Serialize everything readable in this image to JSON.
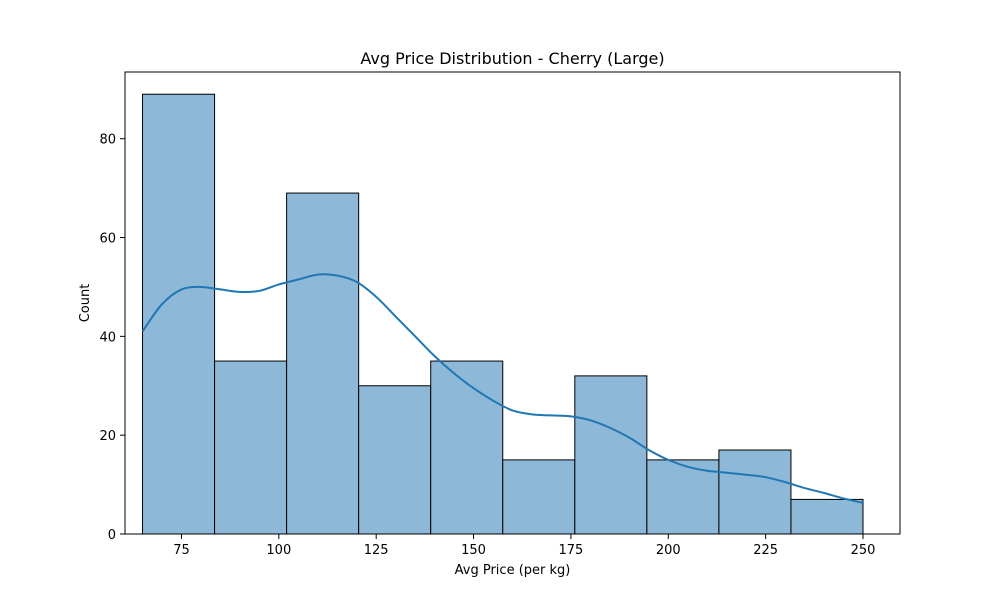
{
  "chart_data": {
    "type": "bar",
    "title": "Avg Price Distribution - Cherry (Large)",
    "xlabel": "Avg Price (per kg)",
    "ylabel": "Count",
    "xlim": [
      60.5,
      259.5
    ],
    "ylim": [
      0,
      93.5
    ],
    "xticks": [
      "75",
      "100",
      "125",
      "150",
      "175",
      "200",
      "225",
      "250"
    ],
    "yticks": [
      "0",
      "20",
      "40",
      "60",
      "80"
    ],
    "bins": [
      {
        "x0": 65.0,
        "x1": 83.5,
        "count": 89
      },
      {
        "x0": 83.5,
        "x1": 102.0,
        "count": 35
      },
      {
        "x0": 102.0,
        "x1": 120.5,
        "count": 69
      },
      {
        "x0": 120.5,
        "x1": 139.0,
        "count": 30
      },
      {
        "x0": 139.0,
        "x1": 157.5,
        "count": 35
      },
      {
        "x0": 157.5,
        "x1": 176.0,
        "count": 15
      },
      {
        "x0": 176.0,
        "x1": 194.5,
        "count": 32
      },
      {
        "x0": 194.5,
        "x1": 213.0,
        "count": 15
      },
      {
        "x0": 213.0,
        "x1": 231.5,
        "count": 17
      },
      {
        "x0": 231.5,
        "x1": 250.0,
        "count": 7
      }
    ],
    "kde": {
      "x": [
        65,
        70,
        75,
        80,
        85,
        90,
        95,
        100,
        105,
        110,
        115,
        120,
        125,
        130,
        135,
        140,
        145,
        150,
        155,
        160,
        165,
        170,
        175,
        180,
        185,
        190,
        195,
        200,
        205,
        210,
        215,
        220,
        225,
        230,
        235,
        240,
        245,
        250
      ],
      "y": [
        41,
        46.5,
        49.5,
        50,
        49.5,
        49,
        49.2,
        50.5,
        51.5,
        52.5,
        52.3,
        51,
        48,
        44,
        40,
        36,
        32.5,
        29.5,
        27,
        25,
        24.2,
        24,
        23.8,
        23,
        21.5,
        19.5,
        17,
        15,
        13.6,
        12.8,
        12.4,
        12,
        11.5,
        10.5,
        9.3,
        8.3,
        7.2,
        6.3
      ]
    },
    "grid": false,
    "colors": {
      "bar_fill": "#8db8d8",
      "bar_edge": "#000000",
      "kde_line": "#1f77b4"
    }
  }
}
